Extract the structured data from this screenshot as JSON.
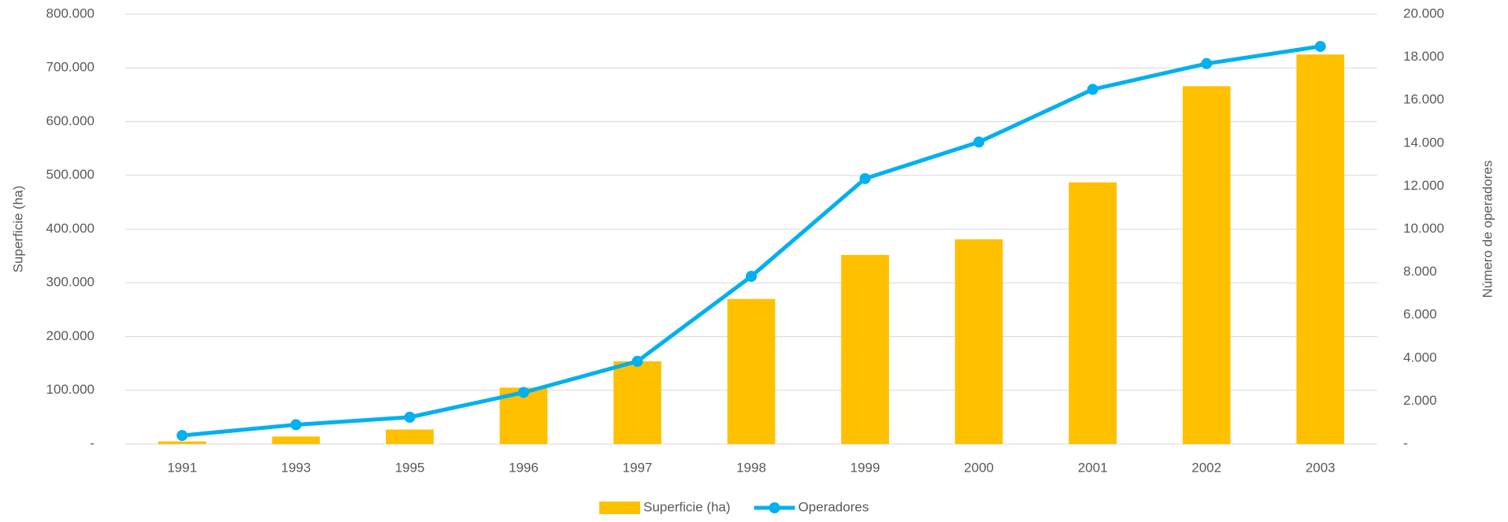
{
  "chart_data": {
    "type": "bar_line",
    "y_label": "Superficie (ha)",
    "y2_label": "Número de operadores",
    "categories": [
      "1991",
      "1993",
      "1995",
      "1996",
      "1997",
      "1998",
      "1999",
      "2000",
      "2001",
      "2002",
      "2003"
    ],
    "series": [
      {
        "name": "Superficie (ha)",
        "type": "bar",
        "color": "#FFC000",
        "values": [
          5000,
          14000,
          27000,
          105000,
          154000,
          270000,
          352000,
          381000,
          487000,
          666000,
          725000
        ]
      },
      {
        "name": "Operadores",
        "type": "line",
        "axis": "y2",
        "color": "#00B0F0",
        "values": [
          400,
          900,
          1250,
          2400,
          3850,
          7800,
          12350,
          14050,
          16500,
          17700,
          18500
        ]
      }
    ],
    "ylim": [
      0,
      800000
    ],
    "yticks": [
      {
        "value": 0,
        "label": "-"
      },
      {
        "value": 100000,
        "label": "100.000"
      },
      {
        "value": 200000,
        "label": "200.000"
      },
      {
        "value": 300000,
        "label": "300.000"
      },
      {
        "value": 400000,
        "label": "400.000"
      },
      {
        "value": 500000,
        "label": "500.000"
      },
      {
        "value": 600000,
        "label": "600.000"
      },
      {
        "value": 700000,
        "label": "700.000"
      },
      {
        "value": 800000,
        "label": "800.000"
      }
    ],
    "y2lim": [
      0,
      20000
    ],
    "y2ticks": [
      {
        "value": 0,
        "label": "-"
      },
      {
        "value": 2000,
        "label": "2.000"
      },
      {
        "value": 4000,
        "label": "4.000"
      },
      {
        "value": 6000,
        "label": "6.000"
      },
      {
        "value": 8000,
        "label": "8.000"
      },
      {
        "value": 10000,
        "label": "10.000"
      },
      {
        "value": 12000,
        "label": "12.000"
      },
      {
        "value": 14000,
        "label": "14.000"
      },
      {
        "value": 16000,
        "label": "16.000"
      },
      {
        "value": 18000,
        "label": "18.000"
      },
      {
        "value": 20000,
        "label": "20.000"
      }
    ],
    "grid": true,
    "legend": "bottom"
  }
}
